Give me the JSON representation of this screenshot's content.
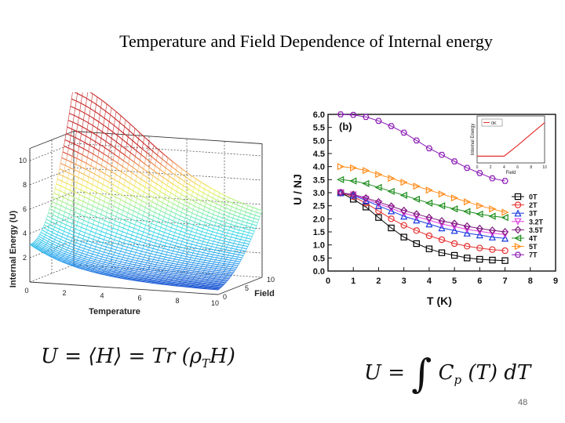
{
  "slide": {
    "title": "Temperature and Field Dependence of Internal energy",
    "page_number": "48"
  },
  "chart_data": [
    {
      "type": "surface",
      "zlabel": "Internal Energy (U)",
      "xlabel": "Temperature",
      "ylabel": "Field",
      "x_ticks": [
        "0",
        "2",
        "4",
        "6",
        "8",
        "10"
      ],
      "y_ticks": [
        "0",
        "5",
        "10"
      ],
      "z_ticks": [
        "2",
        "4",
        "6",
        "8",
        "10"
      ],
      "xlim": [
        0,
        10
      ],
      "ylim": [
        0,
        10
      ],
      "zlim": [
        0,
        11
      ]
    },
    {
      "type": "line",
      "panel_label": "(b)",
      "xlabel": "T (K)",
      "ylabel": "U / NJ",
      "xlim": [
        0,
        9
      ],
      "ylim": [
        0,
        6
      ],
      "x_ticks": [
        "0",
        "1",
        "2",
        "3",
        "4",
        "5",
        "6",
        "7",
        "8",
        "9"
      ],
      "y_ticks": [
        "0.0",
        "0.5",
        "1.0",
        "1.5",
        "2.0",
        "2.5",
        "3.0",
        "3.5",
        "4.0",
        "4.5",
        "5.0",
        "5.5",
        "6.0"
      ],
      "x": [
        0.5,
        1.0,
        1.5,
        2.0,
        2.5,
        3.0,
        3.5,
        4.0,
        4.5,
        5.0,
        5.5,
        6.0,
        6.5,
        7.0
      ],
      "series": [
        {
          "name": "0T",
          "color": "#000000",
          "marker": "square",
          "values": [
            3.0,
            2.75,
            2.45,
            2.05,
            1.65,
            1.3,
            1.05,
            0.85,
            0.7,
            0.6,
            0.5,
            0.45,
            0.42,
            0.4
          ]
        },
        {
          "name": "2T",
          "color": "#e53030",
          "marker": "circle",
          "values": [
            3.0,
            2.85,
            2.6,
            2.3,
            2.0,
            1.75,
            1.55,
            1.35,
            1.2,
            1.05,
            0.95,
            0.88,
            0.82,
            0.78
          ]
        },
        {
          "name": "3T",
          "color": "#1a3be0",
          "marker": "triangle-up",
          "values": [
            3.0,
            2.9,
            2.7,
            2.5,
            2.3,
            2.1,
            1.95,
            1.8,
            1.65,
            1.55,
            1.45,
            1.38,
            1.3,
            1.25
          ]
        },
        {
          "name": "3.2T",
          "color": "#e040e0",
          "marker": "triangle-down",
          "values": [
            3.0,
            2.92,
            2.75,
            2.58,
            2.4,
            2.22,
            2.08,
            1.95,
            1.8,
            1.7,
            1.6,
            1.52,
            1.45,
            1.4
          ]
        },
        {
          "name": "3.5T",
          "color": "#7a1a7a",
          "marker": "diamond",
          "values": [
            3.0,
            2.93,
            2.8,
            2.65,
            2.48,
            2.32,
            2.18,
            2.05,
            1.92,
            1.82,
            1.72,
            1.63,
            1.56,
            1.5
          ]
        },
        {
          "name": "4T",
          "color": "#1a8c1a",
          "marker": "triangle-left",
          "values": [
            3.5,
            3.45,
            3.35,
            3.2,
            3.05,
            2.9,
            2.75,
            2.6,
            2.5,
            2.38,
            2.28,
            2.18,
            2.1,
            2.05
          ]
        },
        {
          "name": "5T",
          "color": "#ff8c1a",
          "marker": "triangle-right",
          "values": [
            4.0,
            3.95,
            3.85,
            3.7,
            3.55,
            3.4,
            3.25,
            3.1,
            2.95,
            2.8,
            2.65,
            2.5,
            2.38,
            2.25
          ]
        },
        {
          "name": "7T",
          "color": "#8b1ab5",
          "marker": "hexagon",
          "values": [
            6.0,
            5.98,
            5.9,
            5.75,
            5.55,
            5.3,
            5.0,
            4.7,
            4.45,
            4.2,
            3.95,
            3.75,
            3.55,
            3.45
          ]
        }
      ],
      "inset": {
        "xlabel": "Field",
        "ylabel": "Internal Energy",
        "legend": "0K",
        "color": "#e53030",
        "x_ticks": [
          "0",
          "2",
          "4",
          "6",
          "8",
          "10"
        ],
        "x": [
          0,
          2,
          4,
          6,
          8,
          10
        ],
        "values": [
          3,
          3,
          3,
          4.6,
          6.3,
          8.0
        ],
        "ylim": [
          2,
          9
        ]
      }
    }
  ],
  "equations": {
    "left": {
      "lhs": "U",
      "eq": "=",
      "mid": "⟨H⟩",
      "eq2": "=",
      "rhs1": "Tr",
      "rhs2": "(ρ",
      "sub": "T",
      "rhs3": "H)"
    },
    "right": {
      "lhs": "U",
      "eq": "=",
      "integral": "∫",
      "c": "C",
      "sub": "p",
      "arg": "(T)",
      "d": "dT"
    }
  }
}
